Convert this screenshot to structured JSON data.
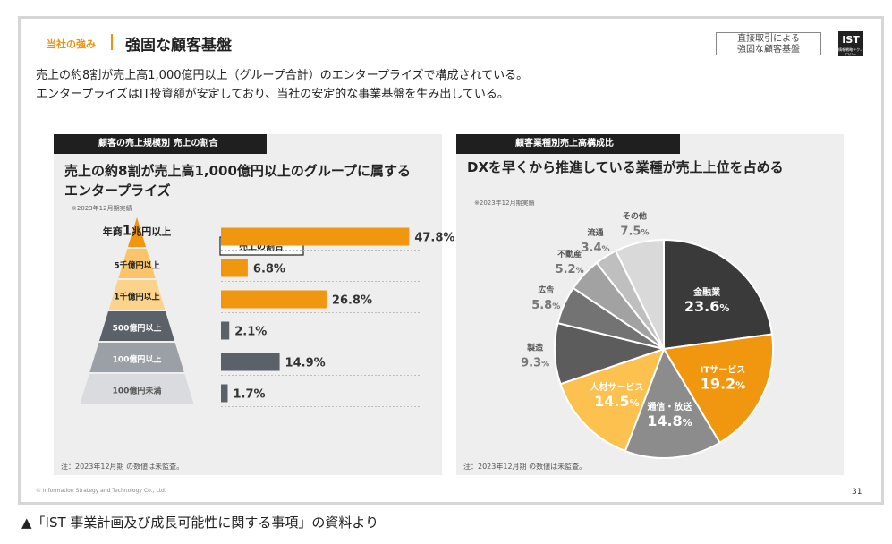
{
  "header": {
    "tag": "当社の強み",
    "title": "強固な顧客基盤",
    "box_line1": "直接取引による",
    "box_line2": "強固な顧客基盤",
    "logo_text": "IST",
    "logo_sub": "情報戦略テクノロジー"
  },
  "lead": {
    "line1": "売上の約8割が売上高1,000億円以上（グループ合計）のエンタープライズで構成されている。",
    "line2": "エンタープライズはIT投資額が安定しており、当社の安定的な事業基盤を生み出している。"
  },
  "left_panel": {
    "tab": "顧客の売上規模別 売上の割合",
    "heading1": "売上の約8割が売上高1,000億円以上のグループに属する",
    "heading2": "エンタープライズ",
    "note": "※2023年12月期実績",
    "footnote": "注：2023年12月期 の数値は未監査。"
  },
  "right_panel": {
    "tab": "顧客業種別売上高構成比",
    "heading": "DXを早くから推進している業種が売上上位を占める",
    "note": "※2023年12月期実績",
    "footnote": "注：2023年12月期 の数値は未監査。"
  },
  "footer": {
    "copyright": "© Information Strategy and Technology Co., Ltd.",
    "page": "31",
    "caption": "▲「IST 事業計画及び成長可能性に関する事項」の資料より"
  },
  "chart_data": [
    {
      "type": "bar",
      "title": "売上の割合",
      "categories": [
        "年商1兆円以上",
        "5千億円以上",
        "1千億円以上",
        "500億円以上",
        "100億円以上",
        "100億円未満"
      ],
      "pyramid_labels": [
        {
          "pre": "年商",
          "big": "1",
          "post": "兆円以上"
        },
        {
          "pre": "5千億円以上",
          "big": "",
          "post": ""
        },
        {
          "pre": "1千億円以上",
          "big": "",
          "post": ""
        },
        {
          "pre": "500億円以上",
          "big": "",
          "post": ""
        },
        {
          "pre": "100億円以上",
          "big": "",
          "post": ""
        },
        {
          "pre": "100億円未満",
          "big": "",
          "post": ""
        }
      ],
      "values": [
        47.8,
        6.8,
        26.8,
        2.1,
        14.9,
        1.7
      ],
      "value_labels": [
        "47.8%",
        "6.8%",
        "26.8%",
        "2.1%",
        "14.9%",
        "1.7%"
      ],
      "xlim": [
        0,
        50
      ],
      "colors": [
        "#f0960f",
        "#f0960f",
        "#f0960f",
        "#5a6169",
        "#5a6169",
        "#5a6169"
      ],
      "pyramid_colors": [
        "#f0960f",
        "#fac56a",
        "#fbd38a",
        "#5a6169",
        "#9aa0a6",
        "#d9dbde"
      ]
    },
    {
      "type": "pie",
      "title": "顧客業種別売上高構成比",
      "categories": [
        "金融業",
        "ITサービス",
        "通信・放送",
        "人材サービス",
        "製造",
        "広告",
        "不動産",
        "流通",
        "その他"
      ],
      "values": [
        23.6,
        19.2,
        14.8,
        14.5,
        9.3,
        5.8,
        5.2,
        3.4,
        7.5
      ],
      "value_nums": [
        "23.6",
        "19.2",
        "14.8",
        "14.5",
        "9.3",
        "5.8",
        "5.2",
        "3.4",
        "7.5"
      ],
      "colors": [
        "#3a3a3a",
        "#f0960f",
        "#8c8c8c",
        "#fcc14e",
        "#5c5c5c",
        "#737373",
        "#a2a2a2",
        "#bfbfbf",
        "#d9d9d9"
      ],
      "label_inside": [
        true,
        true,
        true,
        true,
        false,
        false,
        false,
        false,
        false
      ]
    }
  ]
}
